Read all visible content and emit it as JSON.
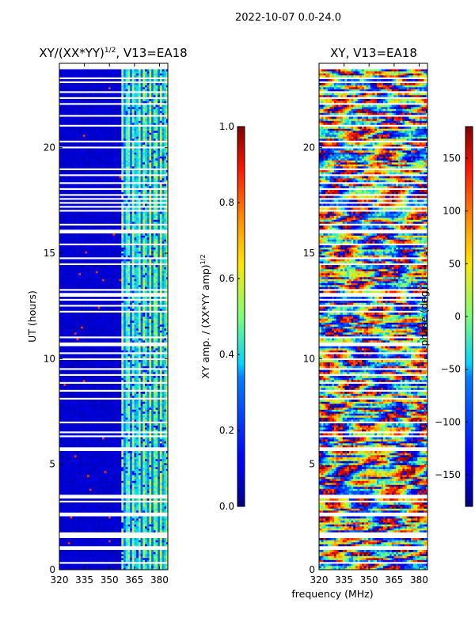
{
  "chart_data": {
    "suptitle": "2022-10-07 0.0-24.0",
    "shared_xlabel": "frequency (MHz)",
    "panels": [
      {
        "type": "heatmap",
        "name": "amplitude",
        "title_main": "XY/(XX*YY)",
        "title_sup": "1/2",
        "title_rest": ", V13=EA18",
        "ylabel": "UT (hours)",
        "xlim": [
          320,
          385
        ],
        "ylim": [
          0,
          24
        ],
        "xticks": [
          320,
          335,
          350,
          365,
          380
        ],
        "yticks": [
          0,
          5,
          10,
          15,
          20
        ],
        "colorbar": {
          "label_main": "XY amp. / (XX*YY amp)",
          "label_sup": "1/2",
          "range": [
            0.0,
            1.0
          ],
          "ticks": [
            "0.0",
            "0.2",
            "0.4",
            "0.6",
            "0.8",
            "1.0"
          ],
          "tick_values": [
            0.0,
            0.2,
            0.4,
            0.6,
            0.8,
            1.0
          ]
        },
        "description_values": {
          "low_freq_band_mhz": [
            320,
            353
          ],
          "low_freq_typical_value": 0.05,
          "high_freq_band_mhz": [
            357,
            383
          ],
          "high_freq_typical_value_range": [
            0.3,
            0.65
          ]
        }
      },
      {
        "type": "heatmap",
        "name": "phase",
        "title": "XY, V13=EA18",
        "xlim": [
          320,
          385
        ],
        "ylim": [
          0,
          24
        ],
        "xticks": [
          320,
          335,
          350,
          365,
          380
        ],
        "yticks": [
          0,
          5,
          10,
          15,
          20
        ],
        "colorbar": {
          "label": "phase (deg)",
          "range": [
            -180,
            180
          ],
          "ticks": [
            "−150",
            "−100",
            "−50",
            "0",
            "50",
            "100",
            "150"
          ],
          "tick_values": [
            -150,
            -100,
            -50,
            0,
            50,
            100,
            150
          ]
        }
      }
    ],
    "flagged_gaps_ut_hours": [
      0.3,
      1.0,
      1.05,
      1.55,
      1.65,
      1.75,
      2.55,
      2.7,
      3.2,
      3.45,
      3.55,
      4.5,
      5.25,
      5.65,
      5.8,
      6.3,
      6.55,
      6.95,
      7.5,
      8.15,
      8.45,
      8.85,
      9.2,
      9.55,
      9.95,
      10.3,
      10.65,
      10.75,
      11.05,
      11.25,
      12.25,
      12.55,
      12.8,
      12.95,
      13.1,
      13.25,
      14.5,
      14.75,
      15.4,
      15.75,
      16.0,
      16.05,
      16.35,
      17.05,
      17.2,
      17.35,
      17.55,
      17.75,
      18.05,
      18.35,
      18.7,
      19.0,
      19.5,
      20.05,
      20.3,
      21.05,
      21.55,
      22.05,
      22.35,
      22.5,
      22.6,
      23.1,
      23.3
    ]
  }
}
